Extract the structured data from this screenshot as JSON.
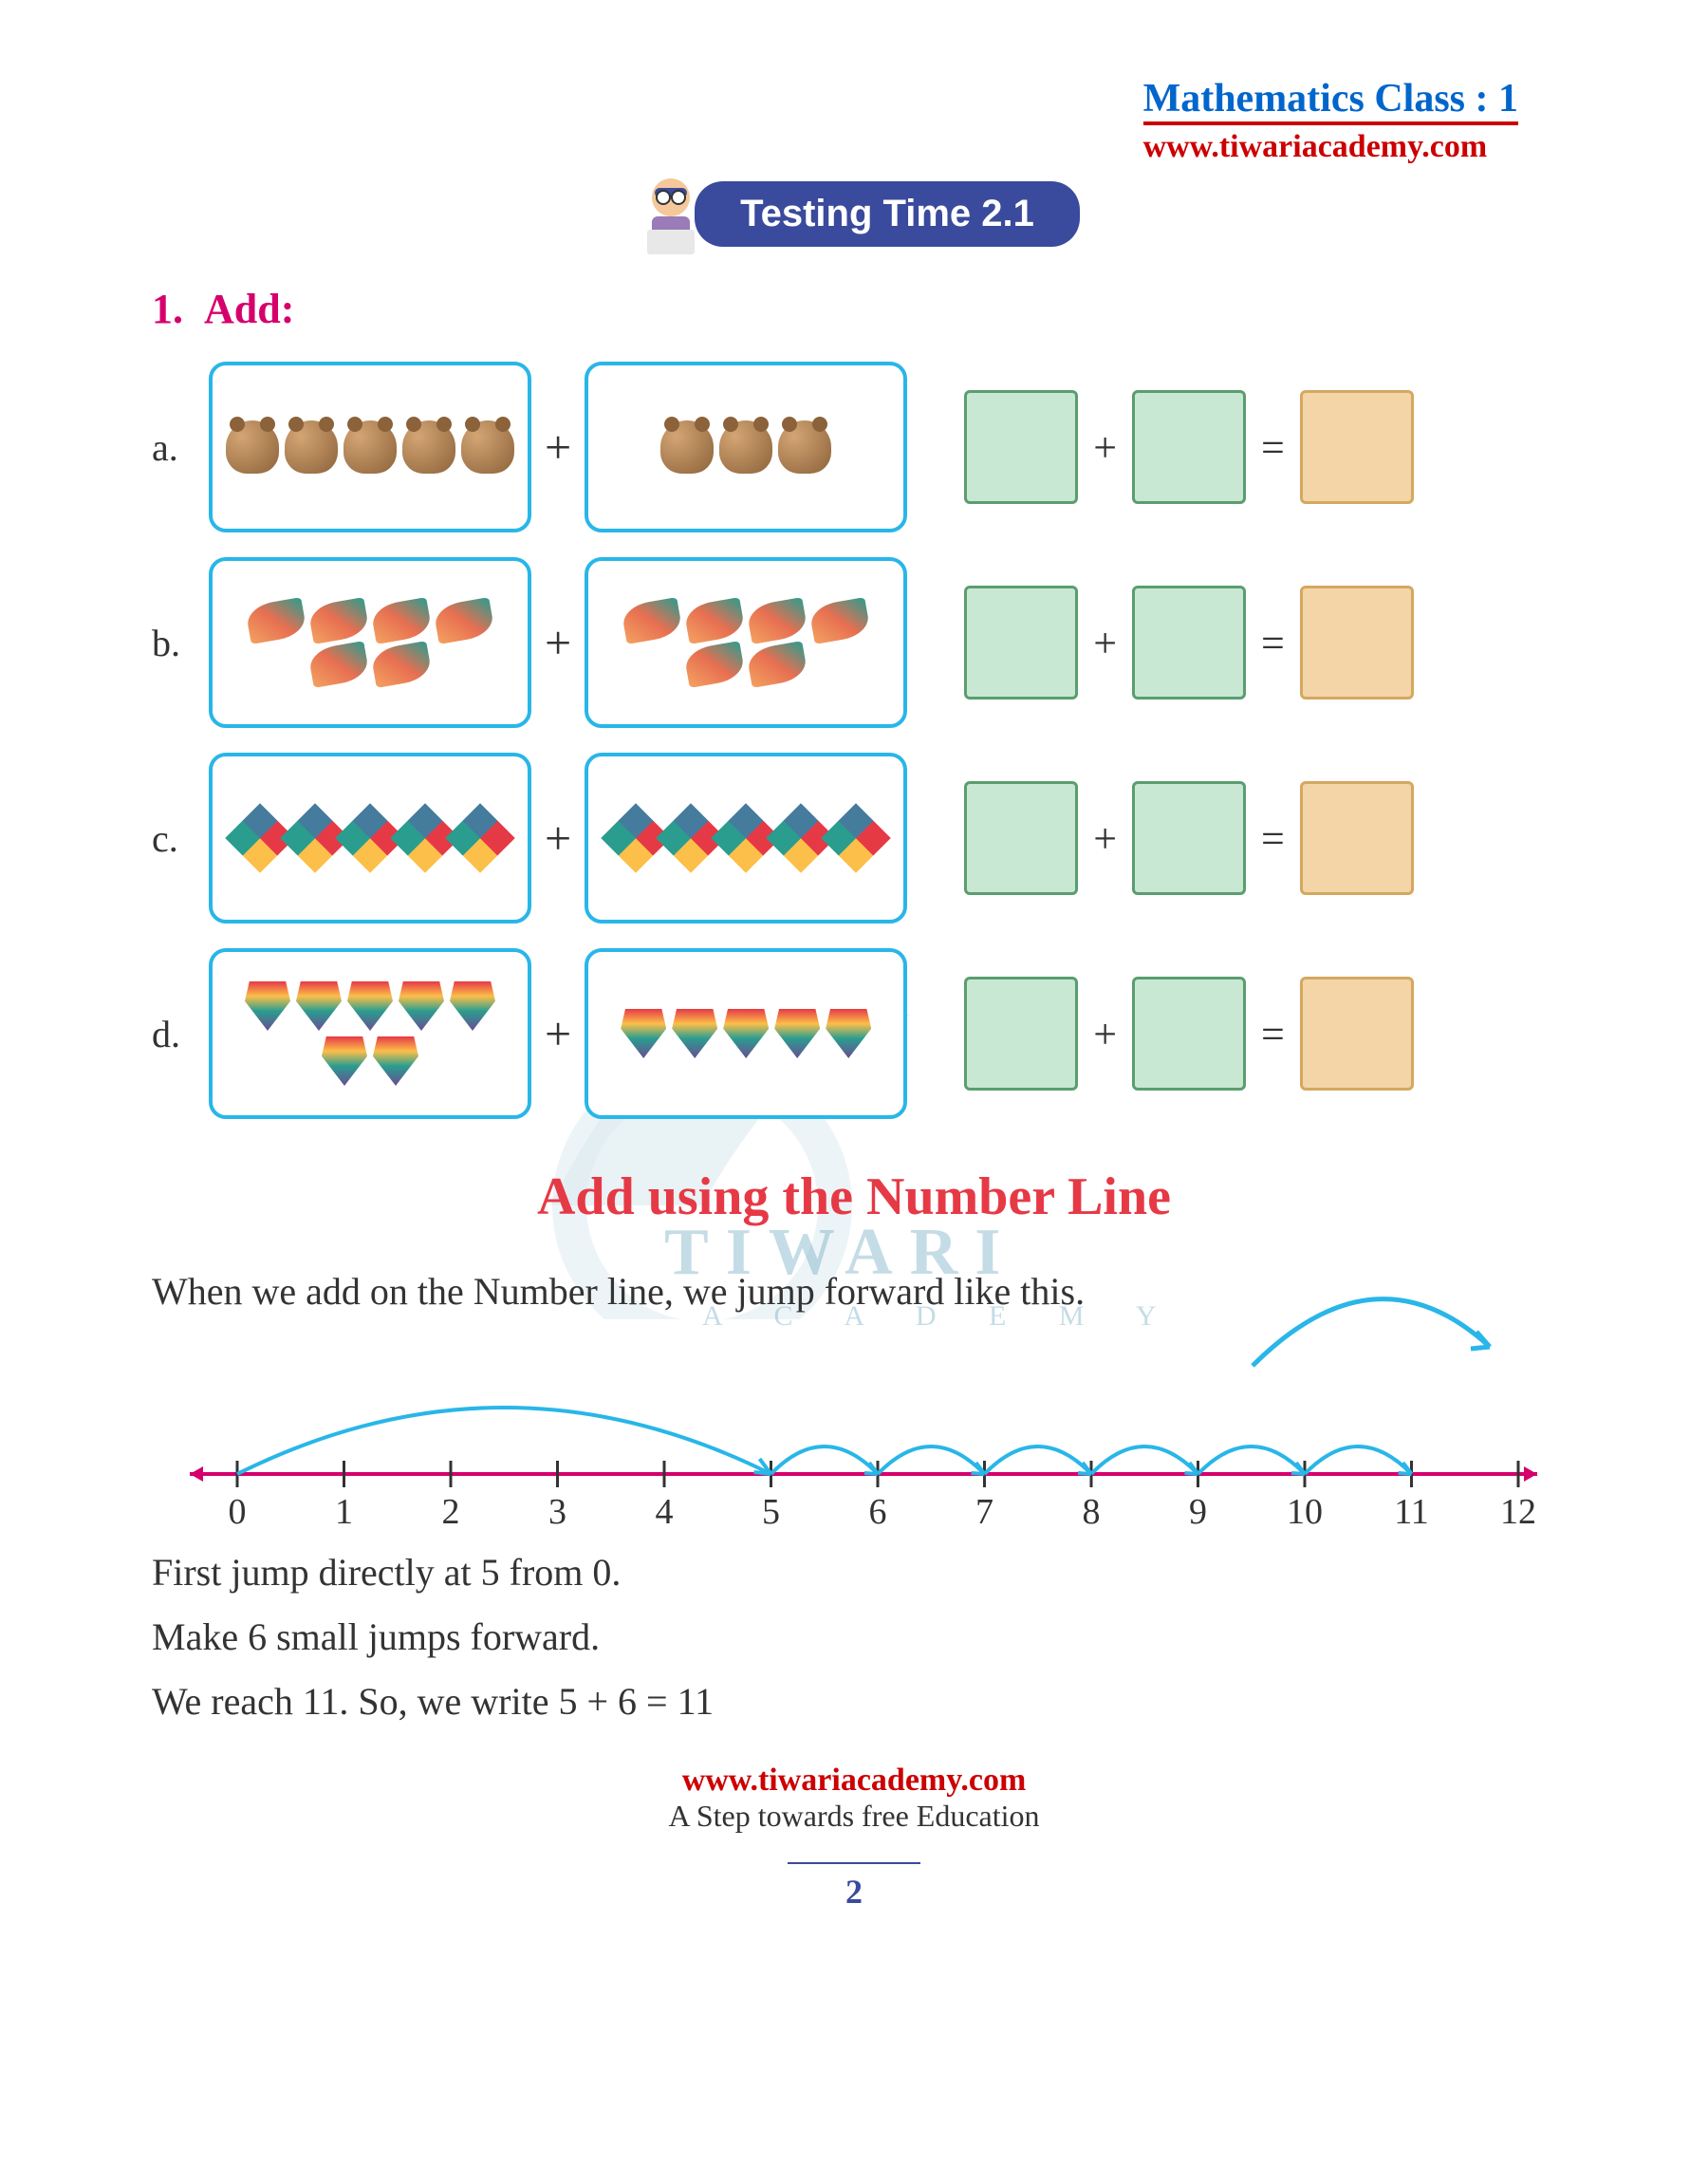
{
  "header": {
    "class_title": "Mathematics Class : 1",
    "url": "www.tiwariacademy.com"
  },
  "badge": {
    "label": "Testing Time 2.1"
  },
  "question": {
    "number": "1.",
    "label": "Add:"
  },
  "rows": {
    "a": {
      "letter": "a.",
      "left_count": 5,
      "right_count": 3,
      "item": "bear"
    },
    "b": {
      "letter": "b.",
      "left_count": 6,
      "right_count": 6,
      "item": "fish"
    },
    "c": {
      "letter": "c.",
      "left_count": 5,
      "right_count": 5,
      "item": "kite"
    },
    "d": {
      "letter": "d.",
      "left_count": 7,
      "right_count": 5,
      "item": "top"
    }
  },
  "ops": {
    "plus": "+",
    "equals": "="
  },
  "section2": {
    "title": "Add using the Number Line",
    "intro": "When we add on the Number line, we jump forward like this.",
    "line1": "First jump directly at 5 from 0.",
    "line2": "Make 6 small jumps forward.",
    "line3": "We reach 11. So, we write 5 + 6 = 11"
  },
  "numberline": {
    "min": 0,
    "max": 12,
    "tick_step": 1,
    "ticks": [
      "0",
      "1",
      "2",
      "3",
      "4",
      "5",
      "6",
      "7",
      "8",
      "9",
      "10",
      "11",
      "12"
    ],
    "first_jump_from": 0,
    "first_jump_to": 5,
    "small_jumps_from": 5,
    "small_jumps_to": 11,
    "line_color": "#d6006c",
    "arc_color": "#29b6e8",
    "tick_fontsize": 38
  },
  "colors": {
    "blue_header": "#0066cc",
    "red": "#cc0000",
    "magenta": "#d6006c",
    "badge_bg": "#3a4a9c",
    "box_border": "#29b6e8",
    "green_fill": "#c9e8d4",
    "green_border": "#5a9e6f",
    "orange_fill": "#f4d5a8",
    "orange_border": "#d4a860",
    "section_red": "#e63946"
  },
  "footer": {
    "url": "www.tiwariacademy.com",
    "tagline": "A Step towards free Education",
    "page": "2"
  },
  "watermark": {
    "main": "TIWARI",
    "sub": "A  C  A  D  E  M  Y"
  }
}
